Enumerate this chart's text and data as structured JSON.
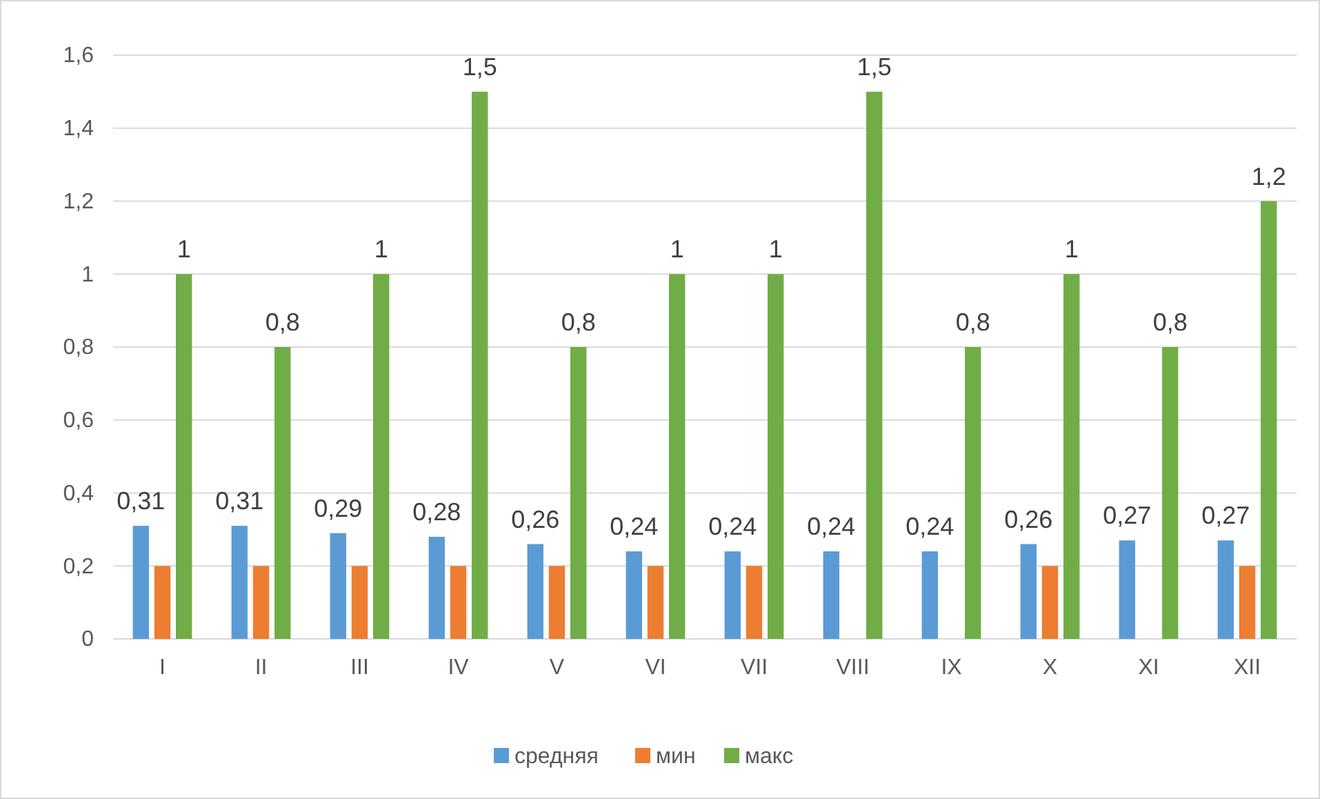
{
  "chart_data": {
    "type": "bar",
    "categories": [
      "I",
      "II",
      "III",
      "IV",
      "V",
      "VI",
      "VII",
      "VIII",
      "IX",
      "X",
      "XI",
      "XII"
    ],
    "series": [
      {
        "name": "средняя",
        "color": "#5b9bd5",
        "values": [
          0.31,
          0.31,
          0.29,
          0.28,
          0.26,
          0.24,
          0.24,
          0.24,
          0.24,
          0.26,
          0.27,
          0.27
        ],
        "value_labels": [
          "0,31",
          "0,31",
          "0,29",
          "0,28",
          "0,26",
          "0,24",
          "0,24",
          "0,24",
          "0,24",
          "0,26",
          "0,27",
          "0,27"
        ]
      },
      {
        "name": "мин",
        "color": "#ed7d31",
        "values": [
          0.2,
          0.2,
          0.2,
          0.2,
          0.2,
          0.2,
          0.2,
          null,
          null,
          0.2,
          null,
          0.2
        ]
      },
      {
        "name": "макс",
        "color": "#70ad47",
        "values": [
          1,
          0.8,
          1,
          1.5,
          0.8,
          1,
          1,
          1.5,
          0.8,
          1,
          0.8,
          1.2
        ],
        "value_labels": [
          "1",
          "0,8",
          "1",
          "1,5",
          "0,8",
          "1",
          "1",
          "1,5",
          "0,8",
          "1",
          "0,8",
          "1,2"
        ]
      }
    ],
    "ylim": [
      0,
      1.6
    ],
    "yticks": [
      0,
      {
        "value": 0.2,
        "label": "0,2"
      },
      {
        "value": 0.4,
        "label": "0,4"
      },
      {
        "value": 0.6,
        "label": "0,6"
      },
      {
        "value": 0.8,
        "label": "0,8"
      },
      1,
      {
        "value": 1.2,
        "label": "1,2"
      },
      {
        "value": 1.4,
        "label": "1,4"
      },
      {
        "value": 1.6,
        "label": "1,6"
      }
    ],
    "grid": "y",
    "legend": "bottom"
  }
}
